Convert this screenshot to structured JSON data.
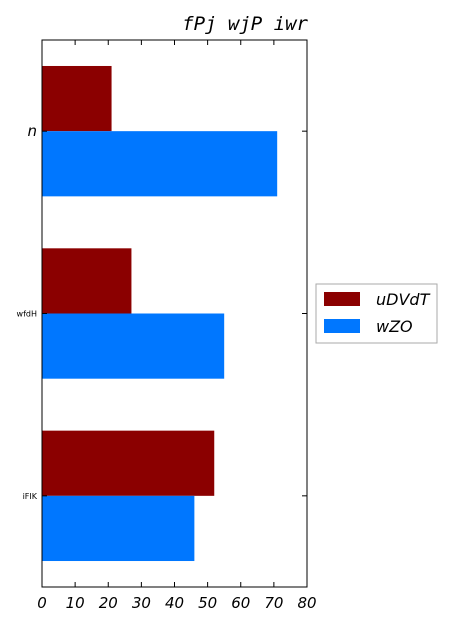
{
  "chart_data": {
    "type": "bar",
    "orientation": "horizontal",
    "title": "fPj wjP iwr",
    "xlabel": "",
    "ylabel": "",
    "categories": [
      "n",
      "wfdH",
      "iFIK"
    ],
    "series": [
      {
        "name": "uDVdT",
        "color": "#8b0000",
        "values": [
          21,
          27,
          52
        ]
      },
      {
        "name": "wZO",
        "color": "#0077ff",
        "values": [
          71,
          55,
          46
        ]
      }
    ],
    "xlim": [
      0,
      80
    ],
    "xticks": [
      "0",
      "10",
      "20",
      "30",
      "40",
      "50",
      "60",
      "70",
      "80"
    ],
    "grid": false,
    "legend": "right"
  }
}
